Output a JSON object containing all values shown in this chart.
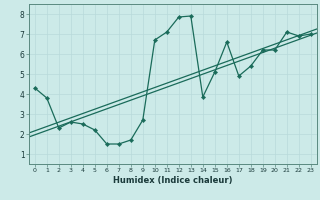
{
  "title": "",
  "xlabel": "Humidex (Indice chaleur)",
  "ylabel": "",
  "bg_color": "#cceae8",
  "line_color": "#1a6b5a",
  "xlim": [
    -0.5,
    23.5
  ],
  "ylim": [
    0.5,
    8.5
  ],
  "xticks": [
    0,
    1,
    2,
    3,
    4,
    5,
    6,
    7,
    8,
    9,
    10,
    11,
    12,
    13,
    14,
    15,
    16,
    17,
    18,
    19,
    20,
    21,
    22,
    23
  ],
  "yticks": [
    1,
    2,
    3,
    4,
    5,
    6,
    7,
    8
  ],
  "scatter_x": [
    0,
    1,
    2,
    3,
    4,
    5,
    6,
    7,
    8,
    9,
    10,
    11,
    12,
    13,
    14,
    15,
    16,
    17,
    18,
    19,
    20,
    21,
    22,
    23
  ],
  "scatter_y": [
    4.3,
    3.8,
    2.3,
    2.6,
    2.5,
    2.2,
    1.5,
    1.5,
    1.7,
    2.7,
    6.7,
    7.1,
    7.85,
    7.9,
    3.85,
    5.1,
    6.6,
    4.9,
    5.4,
    6.2,
    6.2,
    7.1,
    6.9,
    7.0
  ],
  "reg_y1_start": 1.85,
  "reg_y1_end": 7.05,
  "reg_y2_start": 2.05,
  "reg_y2_end": 7.25,
  "grid_color": "#b8dada",
  "xlabel_fontsize": 6.0,
  "tick_fontsize_x": 4.5,
  "tick_fontsize_y": 5.5
}
